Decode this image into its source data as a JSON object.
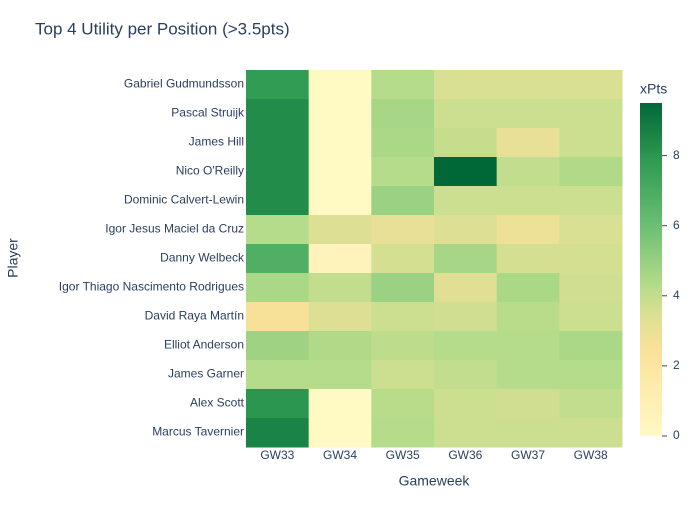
{
  "chart_data": {
    "type": "heatmap",
    "title": "Top 4 Utility per Position (>3.5pts)",
    "x_label": "Gameweek",
    "y_label": "Player",
    "colorbar_title": "xPts",
    "x": [
      "GW33",
      "GW34",
      "GW35",
      "GW36",
      "GW37",
      "GW38"
    ],
    "y": [
      "Gabriel Gudmundsson",
      "Pascal Struijk",
      "James Hill",
      "Nico O'Reilly",
      "Dominic Calvert-Lewin",
      "Igor Jesus Maciel da Cruz",
      "Danny Welbeck",
      "Igor Thiago Nascimento Rodrigues",
      "David Raya Martín",
      "Elliot Anderson",
      "James Garner",
      "Alex Scott",
      "Marcus Tavernier"
    ],
    "z": [
      [
        7.8,
        0,
        4.3,
        3.5,
        3.5,
        3.5
      ],
      [
        8.3,
        0,
        4.6,
        3.8,
        3.8,
        3.8
      ],
      [
        8.3,
        0,
        4.5,
        3.9,
        3.1,
        3.8
      ],
      [
        8.3,
        0,
        4.3,
        9.5,
        4.0,
        4.4
      ],
      [
        8.3,
        0,
        4.9,
        3.8,
        3.8,
        3.8
      ],
      [
        4.3,
        3.4,
        3.1,
        3.4,
        2.9,
        3.5
      ],
      [
        6.8,
        0.5,
        3.6,
        4.6,
        3.6,
        3.6
      ],
      [
        4.5,
        4.0,
        4.9,
        3.3,
        4.5,
        3.7
      ],
      [
        2.6,
        3.4,
        3.8,
        3.7,
        4.2,
        3.8
      ],
      [
        4.8,
        4.4,
        4.1,
        4.3,
        4.3,
        4.5
      ],
      [
        4.3,
        4.3,
        3.8,
        4.0,
        4.3,
        4.3
      ],
      [
        8.0,
        0,
        4.2,
        3.8,
        3.7,
        4.0
      ],
      [
        8.6,
        0,
        4.3,
        3.8,
        3.8,
        3.8
      ]
    ],
    "zlim": [
      0,
      9.5
    ],
    "zticks": [
      0,
      2,
      4,
      6,
      8
    ],
    "colorscale": [
      [
        0,
        "#fff9c4"
      ],
      [
        0.26,
        "#fbe19a"
      ],
      [
        0.37,
        "#d9df93"
      ],
      [
        0.45,
        "#b5dc8a"
      ],
      [
        0.63,
        "#6cbf74"
      ],
      [
        0.83,
        "#2e9a52"
      ],
      [
        1,
        "#006837"
      ]
    ]
  }
}
